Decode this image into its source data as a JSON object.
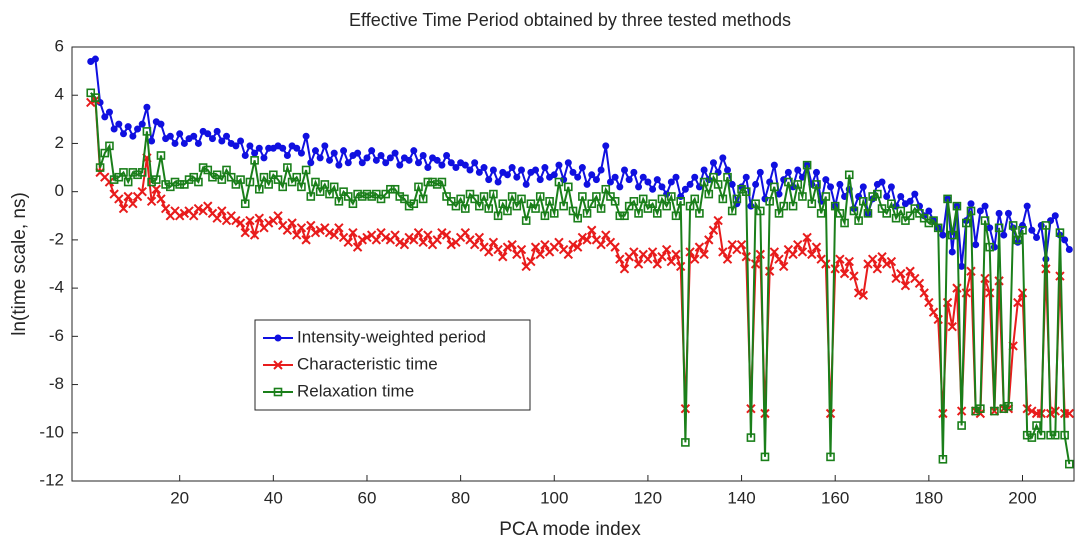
{
  "chart_data": {
    "type": "line",
    "title": "Effective Time Period obtained by three tested methods",
    "x_label": "PCA mode index",
    "y_label": "ln(time scale, ns)",
    "xlim": [
      -3,
      211
    ],
    "ylim": [
      -12,
      6
    ],
    "xticks": [
      20,
      40,
      60,
      80,
      100,
      120,
      140,
      160,
      180,
      200
    ],
    "yticks": [
      -12,
      -10,
      -8,
      -6,
      -4,
      -2,
      0,
      2,
      4,
      6
    ],
    "legend_loc": "southwest",
    "x": [
      1,
      2,
      3,
      4,
      5,
      6,
      7,
      8,
      9,
      10,
      11,
      12,
      13,
      14,
      15,
      16,
      17,
      18,
      19,
      20,
      21,
      22,
      23,
      24,
      25,
      26,
      27,
      28,
      29,
      30,
      31,
      32,
      33,
      34,
      35,
      36,
      37,
      38,
      39,
      40,
      41,
      42,
      43,
      44,
      45,
      46,
      47,
      48,
      49,
      50,
      51,
      52,
      53,
      54,
      55,
      56,
      57,
      58,
      59,
      60,
      61,
      62,
      63,
      64,
      65,
      66,
      67,
      68,
      69,
      70,
      71,
      72,
      73,
      74,
      75,
      76,
      77,
      78,
      79,
      80,
      81,
      82,
      83,
      84,
      85,
      86,
      87,
      88,
      89,
      90,
      91,
      92,
      93,
      94,
      95,
      96,
      97,
      98,
      99,
      100,
      101,
      102,
      103,
      104,
      105,
      106,
      107,
      108,
      109,
      110,
      111,
      112,
      113,
      114,
      115,
      116,
      117,
      118,
      119,
      120,
      121,
      122,
      123,
      124,
      125,
      126,
      127,
      128,
      129,
      130,
      131,
      132,
      133,
      134,
      135,
      136,
      137,
      138,
      139,
      140,
      141,
      142,
      143,
      144,
      145,
      146,
      147,
      148,
      149,
      150,
      151,
      152,
      153,
      154,
      155,
      156,
      157,
      158,
      159,
      160,
      161,
      162,
      163,
      164,
      165,
      166,
      167,
      168,
      169,
      170,
      171,
      172,
      173,
      174,
      175,
      176,
      177,
      178,
      179,
      180,
      181,
      182,
      183,
      184,
      185,
      186,
      187,
      188,
      189,
      190,
      191,
      192,
      193,
      194,
      195,
      196,
      197,
      198,
      199,
      200,
      201,
      202,
      203,
      204,
      205,
      206,
      207,
      208,
      209,
      210
    ],
    "series": [
      {
        "name": "Intensity-weighted period",
        "color": "#1010e0",
        "marker": "circle",
        "values": [
          5.4,
          5.5,
          3.7,
          3.1,
          3.3,
          2.6,
          2.8,
          2.4,
          2.7,
          2.3,
          2.6,
          2.8,
          3.5,
          2.1,
          2.9,
          2.8,
          2.2,
          2.3,
          2.0,
          2.4,
          2.0,
          2.2,
          2.3,
          2.0,
          2.5,
          2.4,
          2.2,
          2.5,
          2.1,
          2.3,
          2.0,
          1.9,
          2.1,
          1.5,
          1.9,
          1.6,
          1.8,
          1.4,
          1.8,
          1.8,
          1.9,
          1.8,
          1.5,
          1.9,
          1.8,
          1.6,
          2.3,
          1.2,
          1.7,
          1.4,
          1.9,
          1.3,
          1.6,
          1.1,
          1.7,
          1.2,
          1.5,
          1.6,
          1.2,
          1.4,
          1.7,
          1.3,
          1.5,
          1.2,
          1.4,
          1.6,
          1.1,
          1.4,
          1.3,
          1.7,
          1.2,
          1.5,
          1.0,
          1.4,
          1.3,
          1.1,
          1.5,
          1.2,
          1.0,
          1.2,
          1.1,
          0.9,
          1.2,
          0.8,
          1.0,
          0.5,
          0.9,
          0.4,
          0.8,
          0.7,
          1.0,
          0.6,
          0.9,
          0.3,
          0.8,
          0.9,
          0.5,
          1.0,
          0.6,
          0.7,
          1.1,
          0.5,
          1.2,
          0.8,
          0.6,
          1.0,
          0.3,
          0.7,
          0.5,
          0.9,
          1.9,
          0.4,
          0.6,
          0.2,
          0.9,
          0.5,
          0.8,
          0.2,
          0.6,
          0.4,
          0.1,
          0.5,
          0.2,
          -0.1,
          0.4,
          0.6,
          -0.2,
          0.1,
          0.3,
          0.6,
          0.2,
          0.9,
          0.5,
          1.2,
          0.8,
          1.4,
          0.9,
          0.3,
          -0.5,
          0.2,
          0.6,
          -0.6,
          0.3,
          0.8,
          -0.3,
          0.4,
          1.1,
          -0.1,
          0.5,
          0.8,
          0.2,
          0.9,
          0.6,
          1.1,
          0.3,
          0.8,
          -0.4,
          0.5,
          0.2,
          -0.6,
          0.3,
          -0.2,
          0.1,
          -0.7,
          -0.2,
          0.2,
          -0.9,
          -0.3,
          0.3,
          0.4,
          -0.2,
          0.2,
          -0.6,
          -0.2,
          -0.5,
          -0.4,
          -0.1,
          -0.6,
          -1.0,
          -0.8,
          -1.2,
          -1.5,
          -1.8,
          -0.3,
          -2.5,
          -0.6,
          -3.1,
          -1.2,
          -0.5,
          -2.2,
          -0.8,
          -0.6,
          -1.5,
          -2.3,
          -0.9,
          -1.8,
          -0.9,
          -1.5,
          -2.1,
          -1.4,
          -0.6,
          -1.6,
          -1.9,
          -1.4,
          -2.8,
          -1.2,
          -1.0,
          -1.8,
          -2.0,
          -2.4
        ]
      },
      {
        "name": "Characteristic time",
        "color": "#e81c1c",
        "marker": "cross",
        "values": [
          3.7,
          3.8,
          0.8,
          0.6,
          0.4,
          -0.1,
          -0.3,
          -0.7,
          -0.2,
          -0.5,
          -0.2,
          0.0,
          1.4,
          -0.4,
          0.1,
          -0.3,
          -0.7,
          -1.0,
          -0.8,
          -1.0,
          -0.9,
          -0.8,
          -1.0,
          -0.7,
          -0.8,
          -0.6,
          -0.9,
          -1.1,
          -0.8,
          -1.2,
          -1.0,
          -1.2,
          -1.3,
          -1.7,
          -1.2,
          -1.8,
          -1.1,
          -1.5,
          -1.3,
          -1.2,
          -1.0,
          -1.4,
          -1.6,
          -1.3,
          -1.8,
          -1.5,
          -2.0,
          -1.4,
          -1.7,
          -1.6,
          -1.5,
          -1.7,
          -1.8,
          -1.5,
          -1.9,
          -2.1,
          -1.7,
          -2.3,
          -2.0,
          -1.9,
          -1.8,
          -2.0,
          -1.7,
          -1.9,
          -2.0,
          -1.8,
          -2.1,
          -2.2,
          -1.9,
          -2.0,
          -1.7,
          -2.1,
          -1.8,
          -2.2,
          -2.0,
          -1.7,
          -1.8,
          -2.2,
          -2.1,
          -1.9,
          -1.7,
          -2.0,
          -2.2,
          -1.9,
          -2.3,
          -2.5,
          -2.1,
          -2.4,
          -2.7,
          -2.3,
          -2.2,
          -2.6,
          -2.4,
          -3.1,
          -2.9,
          -2.3,
          -2.6,
          -2.2,
          -2.5,
          -2.3,
          -2.1,
          -2.4,
          -2.6,
          -2.2,
          -2.3,
          -1.9,
          -2.0,
          -1.6,
          -2.0,
          -2.2,
          -1.8,
          -2.1,
          -2.3,
          -2.8,
          -3.2,
          -2.7,
          -2.5,
          -3.0,
          -2.6,
          -2.8,
          -2.5,
          -3.0,
          -2.7,
          -2.4,
          -2.9,
          -2.6,
          -3.1,
          -9.0,
          -2.5,
          -2.8,
          -2.3,
          -2.6,
          -2.0,
          -1.6,
          -1.2,
          -2.5,
          -2.8,
          -2.2,
          -2.4,
          -2.2,
          -2.7,
          -9.0,
          -3.0,
          -2.6,
          -9.2,
          -3.3,
          -2.5,
          -2.8,
          -3.1,
          -2.4,
          -2.6,
          -2.2,
          -2.5,
          -1.9,
          -2.6,
          -2.3,
          -2.8,
          -3.0,
          -9.2,
          -3.2,
          -2.8,
          -3.4,
          -2.9,
          -3.5,
          -4.2,
          -4.3,
          -3.0,
          -2.8,
          -3.2,
          -2.7,
          -3.0,
          -2.9,
          -3.6,
          -3.4,
          -3.9,
          -3.3,
          -3.6,
          -3.8,
          -4.2,
          -4.6,
          -5.0,
          -5.3,
          -9.2,
          -4.6,
          -5.6,
          -4.0,
          -9.1,
          -4.2,
          -3.3,
          -9.1,
          -9.2,
          -3.6,
          -4.2,
          -9.1,
          -3.7,
          -9.0,
          -9.0,
          -6.4,
          -4.6,
          -4.2,
          -9.0,
          -9.1,
          -9.2,
          -9.2,
          -3.2,
          -9.2,
          -9.1,
          -3.5,
          -9.2,
          -9.2
        ]
      },
      {
        "name": "Relaxation time",
        "color": "#1a7f1a",
        "marker": "square",
        "values": [
          4.1,
          3.9,
          1.0,
          1.6,
          1.9,
          0.5,
          0.6,
          0.8,
          0.4,
          0.8,
          0.7,
          0.8,
          2.5,
          0.4,
          0.5,
          1.5,
          0.3,
          0.2,
          0.4,
          0.3,
          0.3,
          0.5,
          0.6,
          0.4,
          1.0,
          0.9,
          0.6,
          0.7,
          0.5,
          0.9,
          0.6,
          0.3,
          0.5,
          -0.5,
          0.4,
          1.3,
          0.1,
          0.6,
          0.3,
          0.7,
          0.5,
          0.2,
          1.0,
          0.4,
          0.6,
          0.2,
          0.9,
          -0.2,
          0.4,
          0.0,
          0.3,
          -0.1,
          0.2,
          -0.4,
          0.0,
          -0.2,
          -0.5,
          -0.1,
          -0.2,
          -0.1,
          -0.2,
          -0.1,
          -0.3,
          -0.1,
          0.1,
          0.1,
          -0.2,
          -0.3,
          -0.6,
          -0.5,
          0.2,
          -0.3,
          0.4,
          0.4,
          0.3,
          0.4,
          -0.2,
          -0.4,
          -0.6,
          -0.3,
          -0.7,
          -0.1,
          -0.3,
          -0.6,
          -0.2,
          -0.7,
          -0.1,
          -1.0,
          -0.5,
          -0.8,
          -0.2,
          -0.6,
          -0.3,
          -1.2,
          -0.5,
          -0.7,
          -0.2,
          -1.0,
          -0.4,
          -0.9,
          0.4,
          -0.6,
          0.2,
          -0.8,
          -1.1,
          -0.2,
          -0.9,
          -0.5,
          -0.2,
          -0.7,
          0.1,
          -0.2,
          -0.4,
          -1.0,
          -1.0,
          -0.6,
          -0.4,
          -0.9,
          -0.3,
          -0.7,
          -0.5,
          -0.9,
          -0.3,
          -0.6,
          -0.2,
          -1.0,
          -0.4,
          -10.4,
          -0.6,
          -0.3,
          -0.9,
          0.4,
          -0.1,
          0.6,
          0.3,
          -0.3,
          0.6,
          -0.8,
          -0.3,
          0.1,
          0.0,
          -10.2,
          -0.5,
          -0.8,
          -11.0,
          -0.4,
          0.2,
          -0.9,
          -0.6,
          0.4,
          -0.6,
          0.3,
          -0.2,
          1.1,
          -0.5,
          0.3,
          -0.9,
          -0.2,
          -11.0,
          -0.6,
          -0.9,
          -1.3,
          0.7,
          -0.8,
          -1.2,
          -0.4,
          -0.9,
          -0.2,
          -0.1,
          -0.7,
          -0.9,
          -0.5,
          -1.1,
          -0.8,
          -1.2,
          -1.0,
          -0.7,
          -0.9,
          -1.1,
          -1.3,
          -1.2,
          -1.5,
          -11.1,
          -0.3,
          -1.8,
          -0.6,
          -9.7,
          -1.3,
          -0.8,
          -9.1,
          -9.0,
          -1.2,
          -2.3,
          -9.1,
          -1.5,
          -9.0,
          -8.9,
          -1.4,
          -2.0,
          -1.6,
          -10.1,
          -10.2,
          -9.7,
          -10.1,
          -1.4,
          -10.1,
          -10.1,
          -1.7,
          -10.1,
          -11.3
        ]
      }
    ]
  }
}
